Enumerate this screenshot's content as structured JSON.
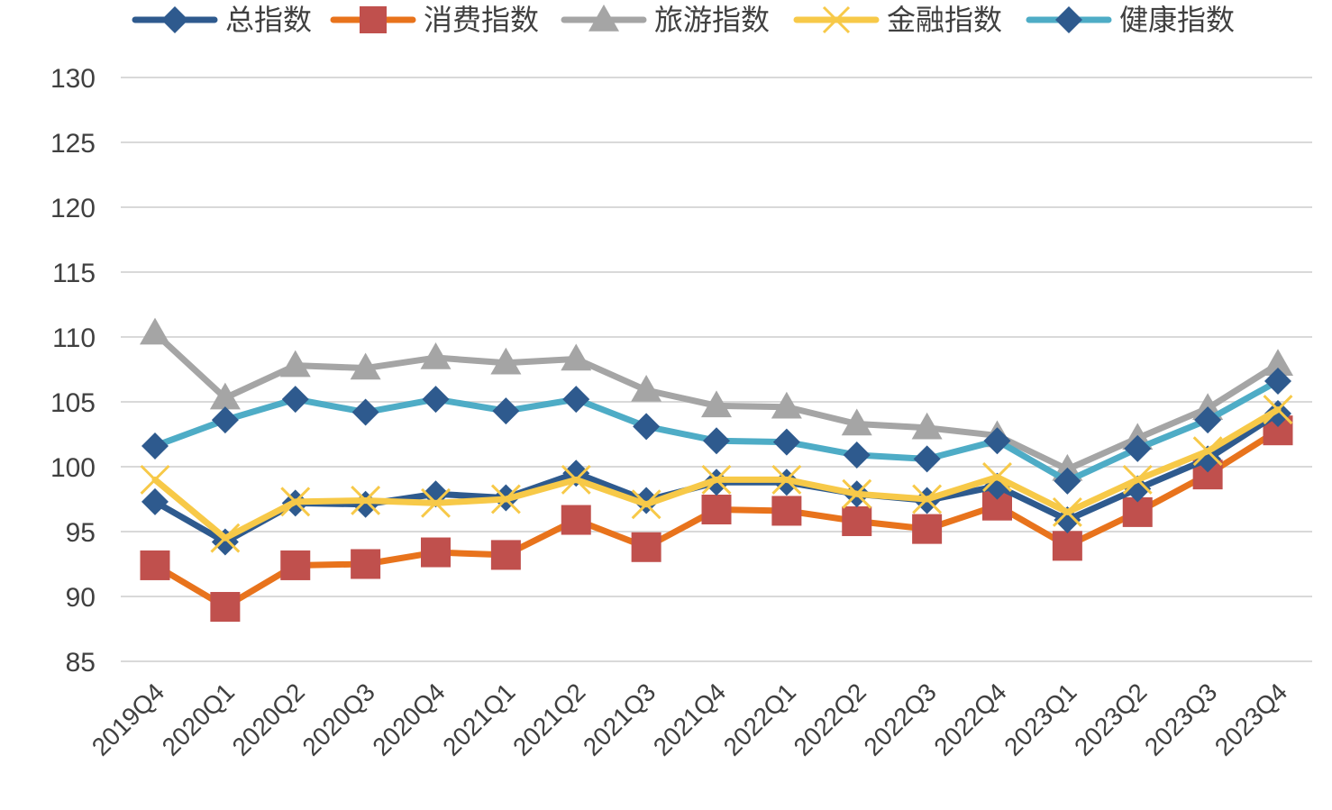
{
  "chart_data": {
    "type": "line",
    "title": "",
    "xlabel": "",
    "ylabel": "",
    "ylim": [
      85,
      130
    ],
    "yticks": [
      85,
      90,
      95,
      100,
      105,
      110,
      115,
      120,
      125,
      130
    ],
    "grid": true,
    "legend_position": "top",
    "categories": [
      "2019Q4",
      "2020Q1",
      "2020Q2",
      "2020Q3",
      "2020Q4",
      "2021Q1",
      "2021Q2",
      "2021Q3",
      "2021Q4",
      "2022Q1",
      "2022Q2",
      "2022Q3",
      "2022Q4",
      "2023Q1",
      "2023Q2",
      "2023Q3",
      "2023Q4"
    ],
    "series": [
      {
        "name": "总指数",
        "color": "#2e5a8e",
        "marker": "diamond",
        "values": [
          97.3,
          94.2,
          97.2,
          97.1,
          97.9,
          97.6,
          99.5,
          97.4,
          98.8,
          98.8,
          97.9,
          97.4,
          98.5,
          95.9,
          98.3,
          100.6,
          104.1
        ]
      },
      {
        "name": "消费指数",
        "color": "#e8731c",
        "marker": "square",
        "values": [
          92.4,
          89.2,
          92.4,
          92.5,
          93.4,
          93.2,
          95.9,
          93.8,
          96.7,
          96.6,
          95.8,
          95.2,
          97.0,
          93.9,
          96.5,
          99.4,
          102.8
        ]
      },
      {
        "name": "旅游指数",
        "color": "#a5a5a5",
        "marker": "triangle",
        "values": [
          110.3,
          105.3,
          107.8,
          107.6,
          108.4,
          108.0,
          108.3,
          105.9,
          104.7,
          104.6,
          103.3,
          103.0,
          102.4,
          99.8,
          102.2,
          104.5,
          107.9
        ]
      },
      {
        "name": "金融指数",
        "color": "#f7c948",
        "marker": "x",
        "values": [
          99.0,
          94.5,
          97.3,
          97.4,
          97.2,
          97.5,
          99.0,
          97.1,
          99.0,
          99.0,
          97.9,
          97.5,
          99.2,
          96.5,
          99.0,
          101.2,
          104.4
        ]
      },
      {
        "name": "健康指数",
        "color": "#4eacc6",
        "marker": "diamond",
        "values": [
          101.6,
          103.6,
          105.2,
          104.2,
          105.2,
          104.3,
          105.2,
          103.1,
          102.0,
          101.9,
          100.9,
          100.6,
          102.0,
          98.9,
          101.4,
          103.6,
          106.6
        ]
      }
    ]
  }
}
